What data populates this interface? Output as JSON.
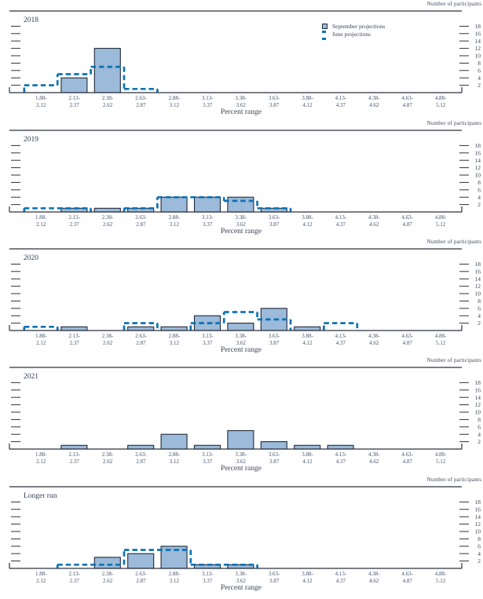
{
  "colors": {
    "bar_fill": "#9cbad9",
    "bar_stroke": "#20293a",
    "june_line": "#0b73b4",
    "axis": "#2b323c",
    "text": "#3b4657"
  },
  "chart_data": {
    "type": "bar",
    "unit_label": "Number of participants",
    "xlabel": "Percent range",
    "categories": [
      "1.88-\n2.12",
      "2.13-\n2.37",
      "2.38-\n2.62",
      "2.63-\n2.87",
      "2.88-\n3.12",
      "3.13-\n3.37",
      "3.38-\n3.62",
      "3.63-\n3.87",
      "3.88-\n4.12",
      "4.13-\n4.37",
      "4.38-\n4.62",
      "4.63-\n4.87",
      "4.88-\n5.12"
    ],
    "yticks": [
      2,
      4,
      6,
      8,
      10,
      12,
      14,
      16,
      18
    ],
    "ylim": [
      0,
      19
    ],
    "grid": false,
    "legend_position": "top-right-first-panel",
    "legend": [
      "September projections",
      "June projections"
    ],
    "panels": [
      {
        "title": "2018",
        "september": [
          0,
          4,
          12,
          0,
          0,
          0,
          0,
          0,
          0,
          0,
          0,
          0,
          0
        ],
        "june": [
          2,
          5,
          7,
          1,
          0,
          0,
          0,
          0,
          0,
          0,
          0,
          0,
          0
        ]
      },
      {
        "title": "2019",
        "september": [
          0,
          1,
          1,
          1,
          4,
          4,
          4,
          1,
          0,
          0,
          0,
          0,
          0
        ],
        "june": [
          1,
          1,
          0,
          1,
          4,
          4,
          3,
          1,
          0,
          0,
          0,
          0,
          0
        ]
      },
      {
        "title": "2020",
        "september": [
          0,
          1,
          0,
          1,
          1,
          4,
          2,
          6,
          1,
          0,
          0,
          0,
          0
        ],
        "june": [
          1,
          0,
          0,
          2,
          0,
          2,
          5,
          3,
          0,
          2,
          0,
          0,
          0
        ]
      },
      {
        "title": "2021",
        "september": [
          0,
          1,
          0,
          1,
          4,
          1,
          5,
          2,
          1,
          1,
          0,
          0,
          0
        ],
        "june": null
      },
      {
        "title": "Longer run",
        "september": [
          0,
          0,
          3,
          4,
          6,
          1,
          1,
          0,
          0,
          0,
          0,
          0,
          0
        ],
        "june": [
          0,
          1,
          1,
          5,
          5,
          1,
          1,
          0,
          0,
          0,
          0,
          0,
          0
        ]
      }
    ]
  }
}
